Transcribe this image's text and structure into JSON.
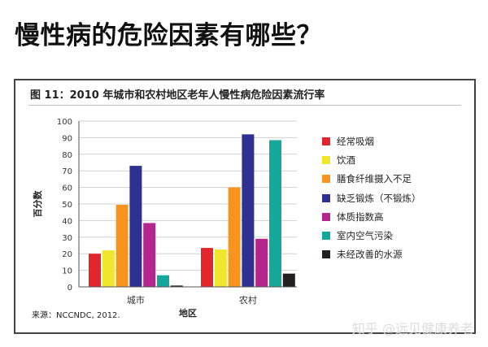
{
  "page": {
    "title": "慢性病的危险因素有哪些？",
    "watermark": "知乎 @远见健康养老"
  },
  "figure": {
    "title": "图 11：2010 年城市和农村地区老年人慢性病危险因素流行率",
    "source": "来源：NCCNDC, 2012."
  },
  "chart_data": {
    "type": "bar",
    "categories": [
      "城市",
      "农村"
    ],
    "xlabel": "地区",
    "ylabel": "百分数",
    "ylim": [
      0,
      100
    ],
    "yticks": [
      0,
      10,
      20,
      30,
      40,
      50,
      60,
      70,
      80,
      90,
      100
    ],
    "grid": true,
    "legend_position": "right",
    "series": [
      {
        "name": "经常吸烟",
        "color": "#e3262d",
        "values": [
          20,
          23.5
        ]
      },
      {
        "name": "饮酒",
        "color": "#f0e62b",
        "values": [
          22,
          22.5
        ]
      },
      {
        "name": "膳食纤维摄入不足",
        "color": "#f7941d",
        "values": [
          49.5,
          60
        ]
      },
      {
        "name": "缺乏锻炼（不锻炼）",
        "color": "#2e3192",
        "values": [
          73,
          92
        ]
      },
      {
        "name": "体质指数高",
        "color": "#b5268d",
        "values": [
          38.5,
          29
        ]
      },
      {
        "name": "室内空气污染",
        "color": "#14a89b",
        "values": [
          7,
          88.5
        ]
      },
      {
        "name": "未经改善的水源",
        "color": "#231f20",
        "values": [
          0.8,
          8
        ]
      }
    ]
  }
}
